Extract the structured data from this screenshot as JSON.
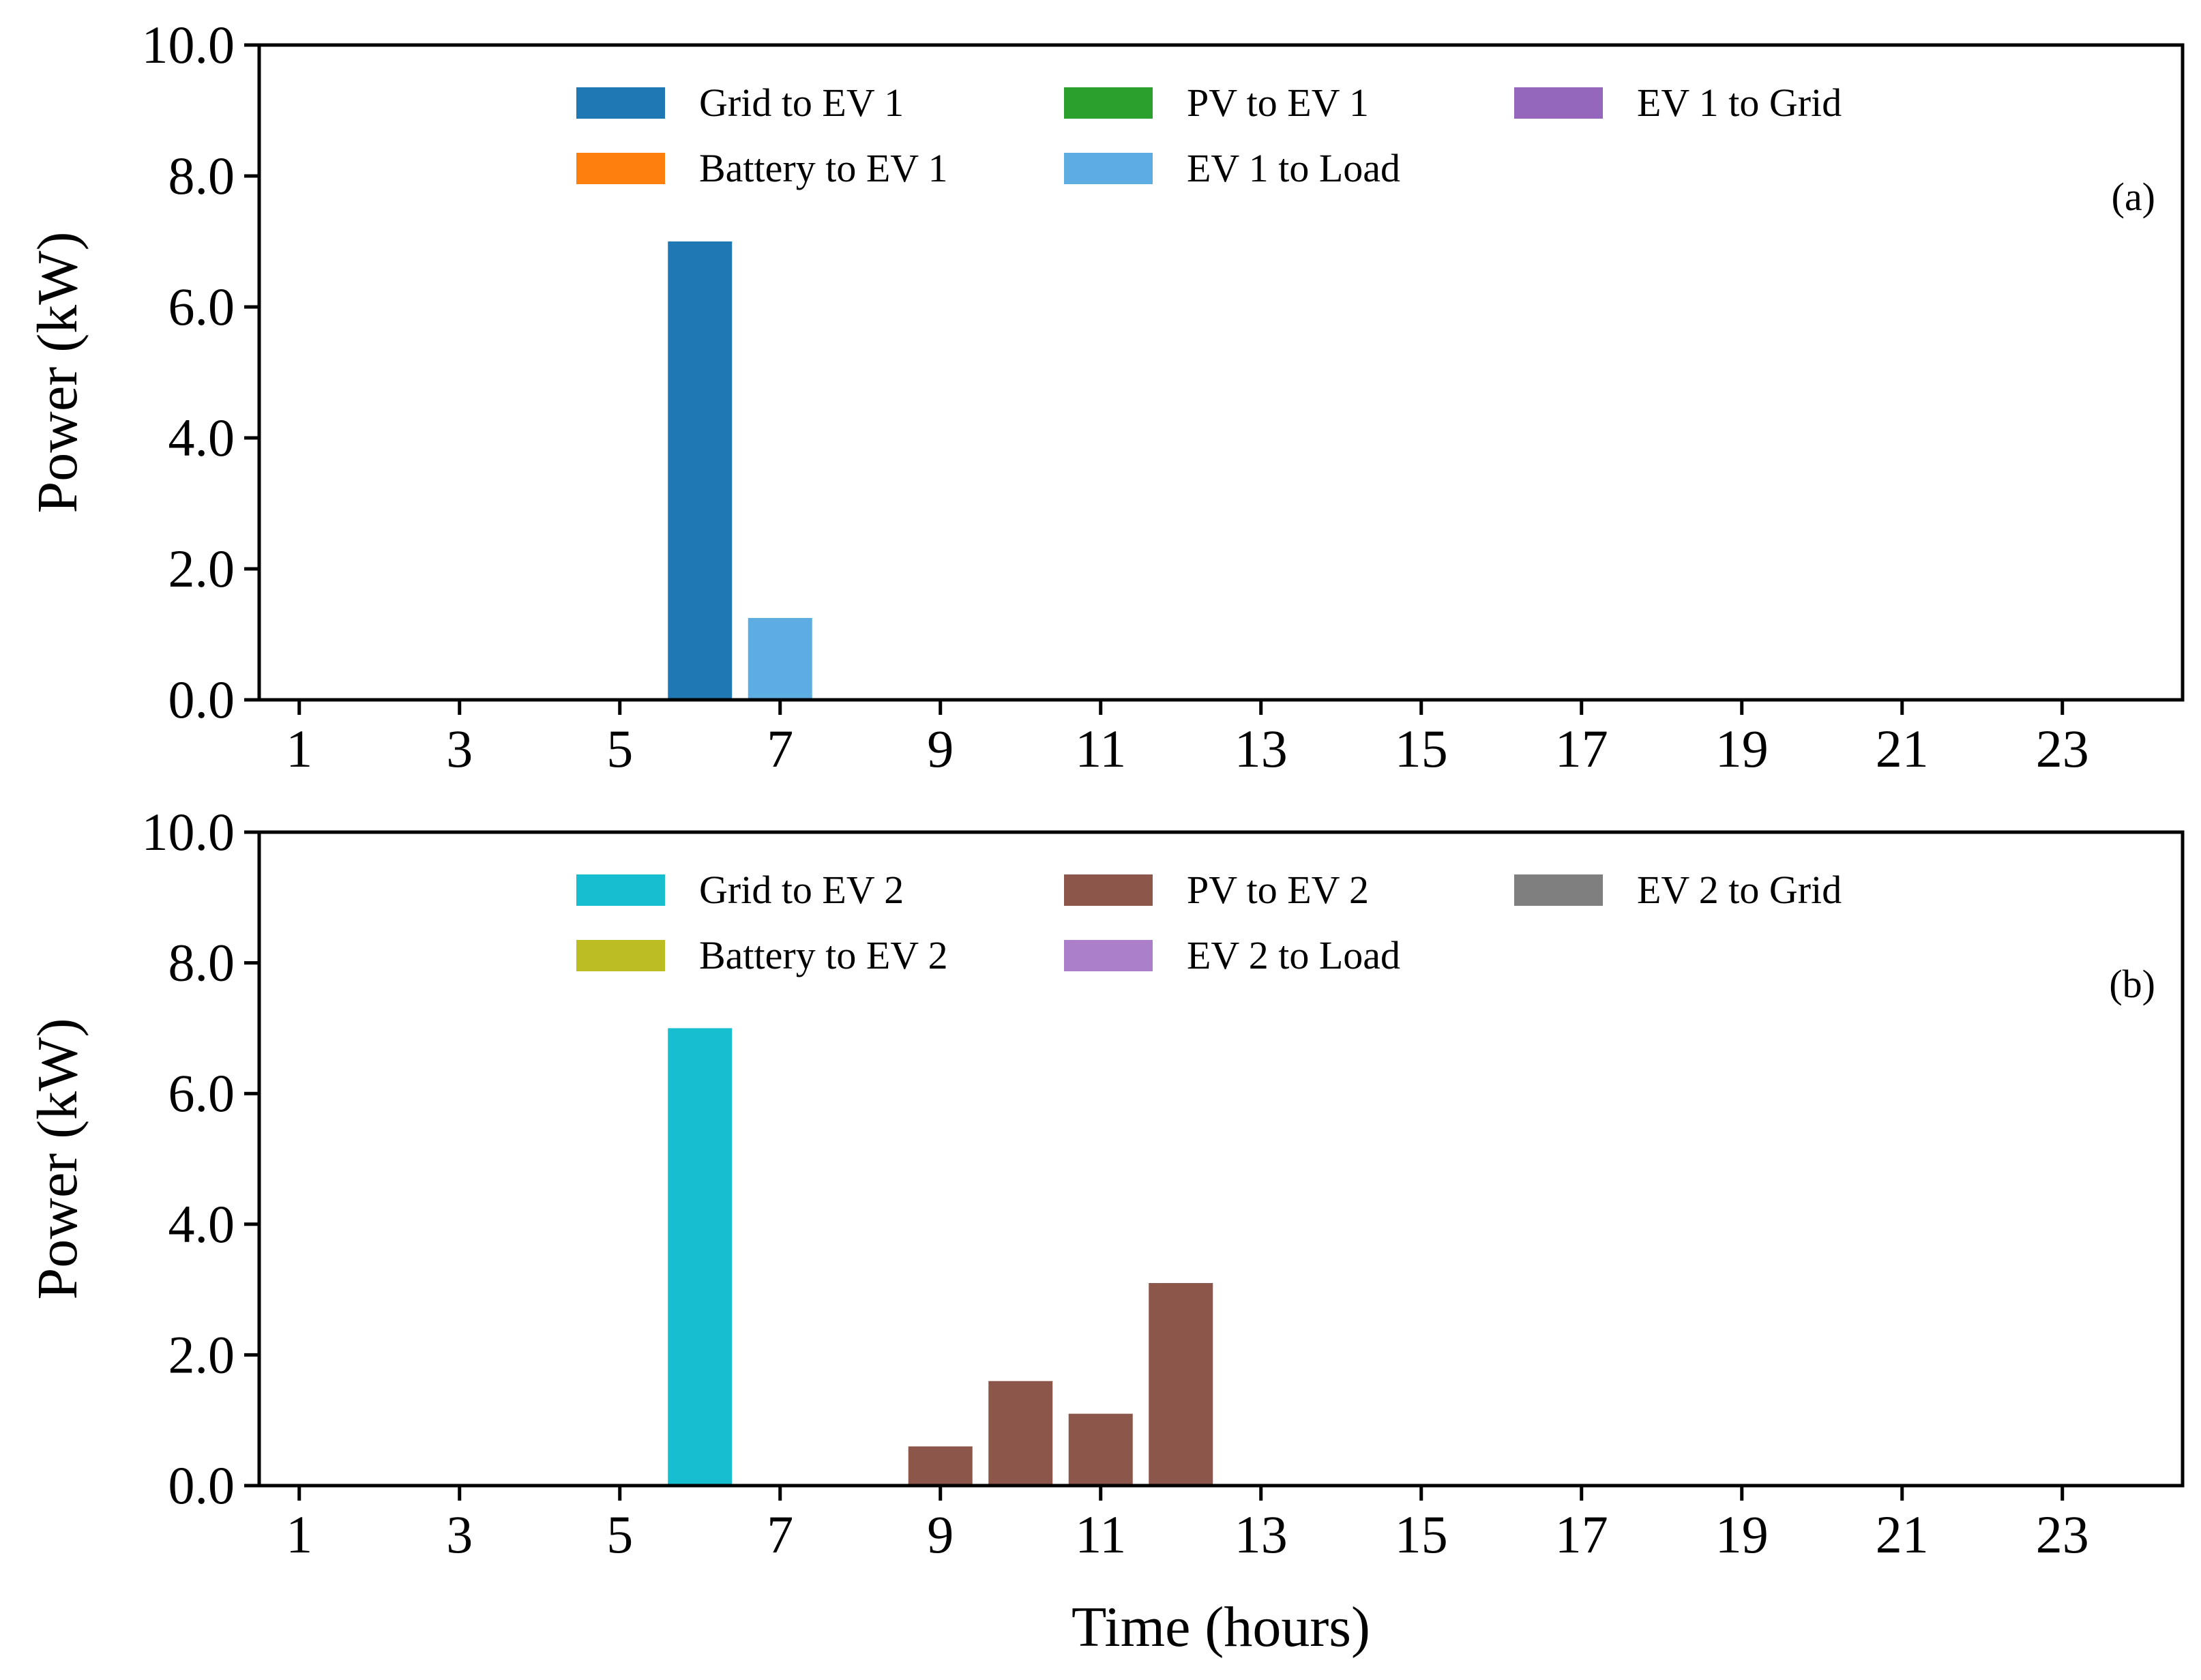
{
  "chart_data": [
    {
      "type": "bar",
      "panel_label": "(a)",
      "ylabel": "Power (kW)",
      "xlabel": "",
      "ylim": [
        0,
        10
      ],
      "yticks": [
        "0.0",
        "2.0",
        "4.0",
        "6.0",
        "8.0",
        "10.0"
      ],
      "xlim": [
        0.5,
        24.5
      ],
      "xticks": [
        "1",
        "3",
        "5",
        "7",
        "9",
        "11",
        "13",
        "15",
        "17",
        "19",
        "21",
        "23"
      ],
      "legend_location": "top-center",
      "series": [
        {
          "name": "Grid to EV 1",
          "color": "#1f77b4",
          "values": [
            {
              "x": 6,
              "y": 7.0
            }
          ]
        },
        {
          "name": "Battery to EV 1",
          "color": "#ff7f0e",
          "values": []
        },
        {
          "name": "PV to EV 1",
          "color": "#2ca02c",
          "values": []
        },
        {
          "name": "EV 1 to Load",
          "color": "#5dade2",
          "values": [
            {
              "x": 7,
              "y": 1.25
            }
          ]
        },
        {
          "name": "EV 1 to Grid",
          "color": "#9467bd",
          "values": []
        }
      ]
    },
    {
      "type": "bar",
      "panel_label": "(b)",
      "ylabel": "Power (kW)",
      "xlabel": "Time (hours)",
      "ylim": [
        0,
        10
      ],
      "yticks": [
        "0.0",
        "2.0",
        "4.0",
        "6.0",
        "8.0",
        "10.0"
      ],
      "xlim": [
        0.5,
        24.5
      ],
      "xticks": [
        "1",
        "3",
        "5",
        "7",
        "9",
        "11",
        "13",
        "15",
        "17",
        "19",
        "21",
        "23"
      ],
      "legend_location": "top-center",
      "series": [
        {
          "name": "Grid to EV 2",
          "color": "#17becf",
          "values": [
            {
              "x": 6,
              "y": 7.0
            }
          ]
        },
        {
          "name": "Battery to EV 2",
          "color": "#bcbd22",
          "values": []
        },
        {
          "name": "PV to EV 2",
          "color": "#8c564b",
          "values": [
            {
              "x": 9,
              "y": 0.6
            },
            {
              "x": 10,
              "y": 1.6
            },
            {
              "x": 11,
              "y": 1.1
            },
            {
              "x": 12,
              "y": 3.1
            }
          ]
        },
        {
          "name": "EV 2 to Load",
          "color": "#ab7fc9",
          "values": []
        },
        {
          "name": "EV 2 to Grid",
          "color": "#7f7f7f",
          "values": []
        }
      ]
    }
  ]
}
